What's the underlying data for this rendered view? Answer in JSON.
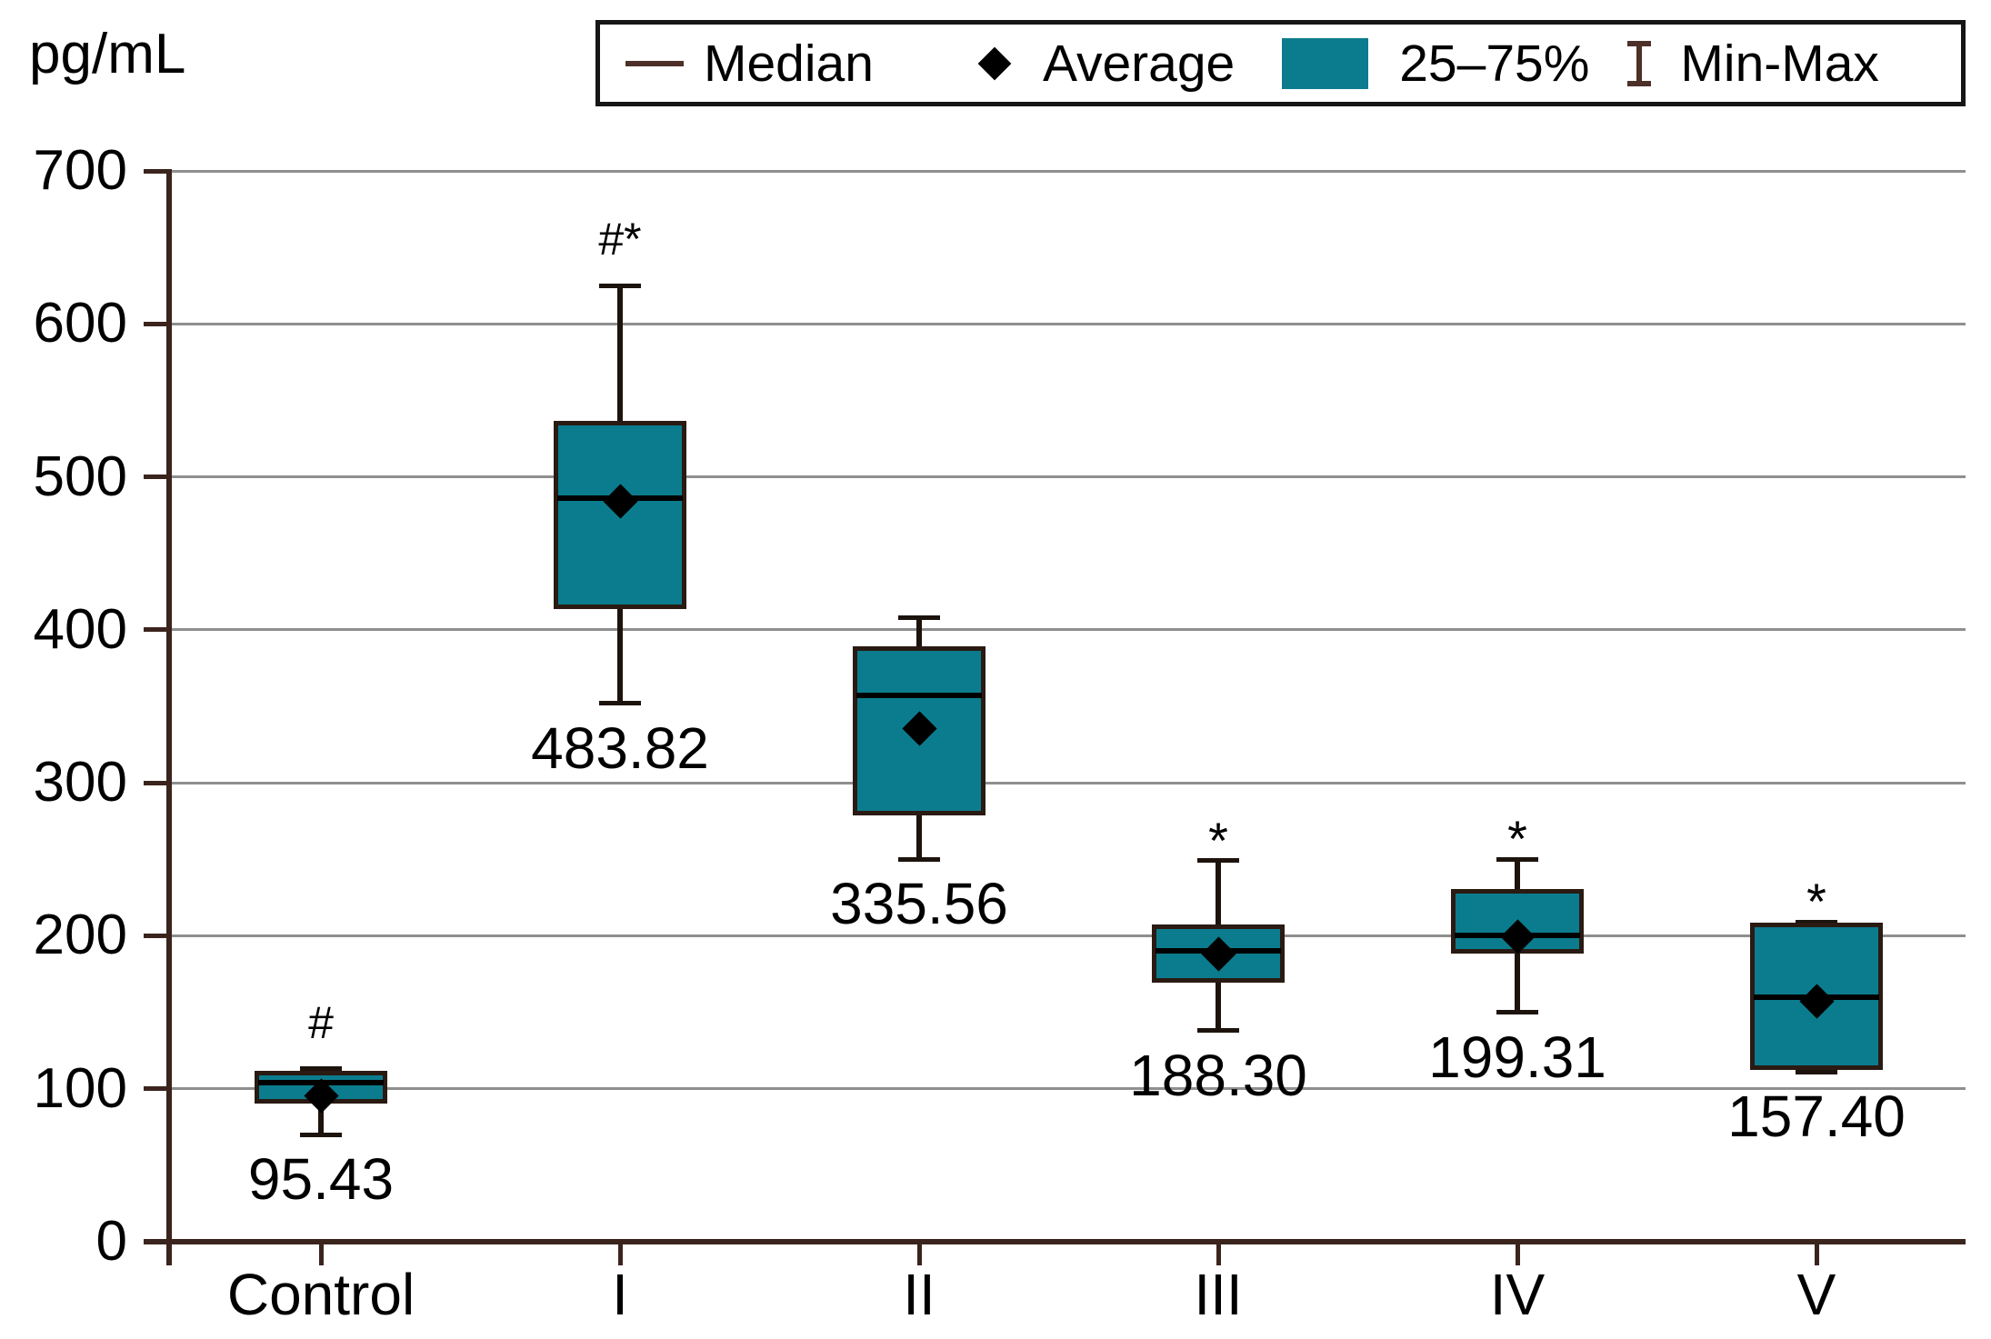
{
  "units_label": "pg/mL",
  "legend": {
    "median": "Median",
    "average": "Average",
    "iqr": "25–75%",
    "minmax": "Min-Max"
  },
  "colors": {
    "box_fill": "#0b7c8d",
    "box_border": "#2a1a12",
    "axis": "#3a241c",
    "gridline": "#8f8f8f",
    "whisker": "#1d130d",
    "median_line": "#000000",
    "diamond": "#000000",
    "legend_border": "#161616",
    "background": "#ffffff",
    "text": "#000000"
  },
  "chart_data": {
    "type": "box",
    "title": "",
    "ylabel": "pg/mL",
    "xlabel": "",
    "ylim": [
      0,
      700
    ],
    "yticks": [
      700,
      600,
      500,
      400,
      300,
      200,
      100,
      0
    ],
    "grid": true,
    "legend_position": "top",
    "legend_entries": [
      "Median",
      "Average",
      "25–75%",
      "Min-Max"
    ],
    "categories": [
      "Control",
      "I",
      "II",
      "III",
      "IV",
      "V"
    ],
    "series": [
      {
        "name": "Control",
        "min": 70,
        "q1": 92,
        "median": 104,
        "q3": 110,
        "max": 113,
        "mean": 95.43,
        "mean_label": "95.43",
        "annotation": "#"
      },
      {
        "name": "I",
        "min": 352,
        "q1": 415,
        "median": 486,
        "q3": 535,
        "max": 625,
        "mean": 483.82,
        "mean_label": "483.82",
        "annotation": "#*"
      },
      {
        "name": "II",
        "min": 250,
        "q1": 280,
        "median": 357,
        "q3": 388,
        "max": 408,
        "mean": 335.56,
        "mean_label": "335.56",
        "annotation": ""
      },
      {
        "name": "III",
        "min": 138,
        "q1": 171,
        "median": 190,
        "q3": 206,
        "max": 249,
        "mean": 188.3,
        "mean_label": "188.30",
        "annotation": "*"
      },
      {
        "name": "IV",
        "min": 150,
        "q1": 190,
        "median": 200,
        "q3": 229,
        "max": 250,
        "mean": 199.31,
        "mean_label": "199.31",
        "annotation": "*"
      },
      {
        "name": "V",
        "min": 111,
        "q1": 114,
        "median": 160,
        "q3": 207,
        "max": 209,
        "mean": 157.4,
        "mean_label": "157.40",
        "annotation": "*"
      }
    ]
  }
}
